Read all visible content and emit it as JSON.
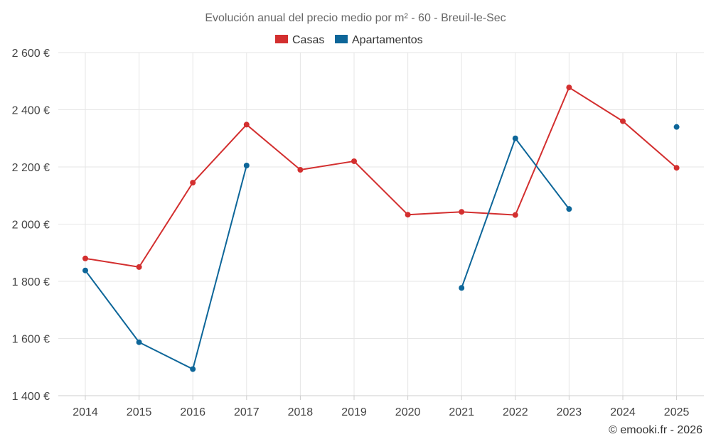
{
  "chart_data": {
    "type": "line",
    "title": "Evolución anual del precio medio por m² - 60 - Breuil-le-Sec",
    "categories": [
      "2014",
      "2015",
      "2016",
      "2017",
      "2018",
      "2019",
      "2020",
      "2021",
      "2022",
      "2023",
      "2024",
      "2025"
    ],
    "ylim": [
      1400,
      2600
    ],
    "ytick_values": [
      1400,
      1600,
      1800,
      2000,
      2200,
      2400,
      2600
    ],
    "ytick_labels": [
      "1 400 €",
      "1 600 €",
      "1 800 €",
      "2 000 €",
      "2 200 €",
      "2 400 €",
      "2 600 €"
    ],
    "grid": true,
    "legend_position": "top",
    "series": [
      {
        "name": "Casas",
        "color": "#d32f2f",
        "values": [
          1880,
          1850,
          2145,
          2348,
          2190,
          2220,
          2033,
          2043,
          2032,
          2478,
          2360,
          2197
        ]
      },
      {
        "name": "Apartamentos",
        "color": "#0d6699",
        "values": [
          1838,
          1587,
          1493,
          2205,
          null,
          null,
          null,
          1777,
          2300,
          2053,
          null,
          2340
        ]
      }
    ]
  },
  "credit": "© emooki.fr - 2026"
}
